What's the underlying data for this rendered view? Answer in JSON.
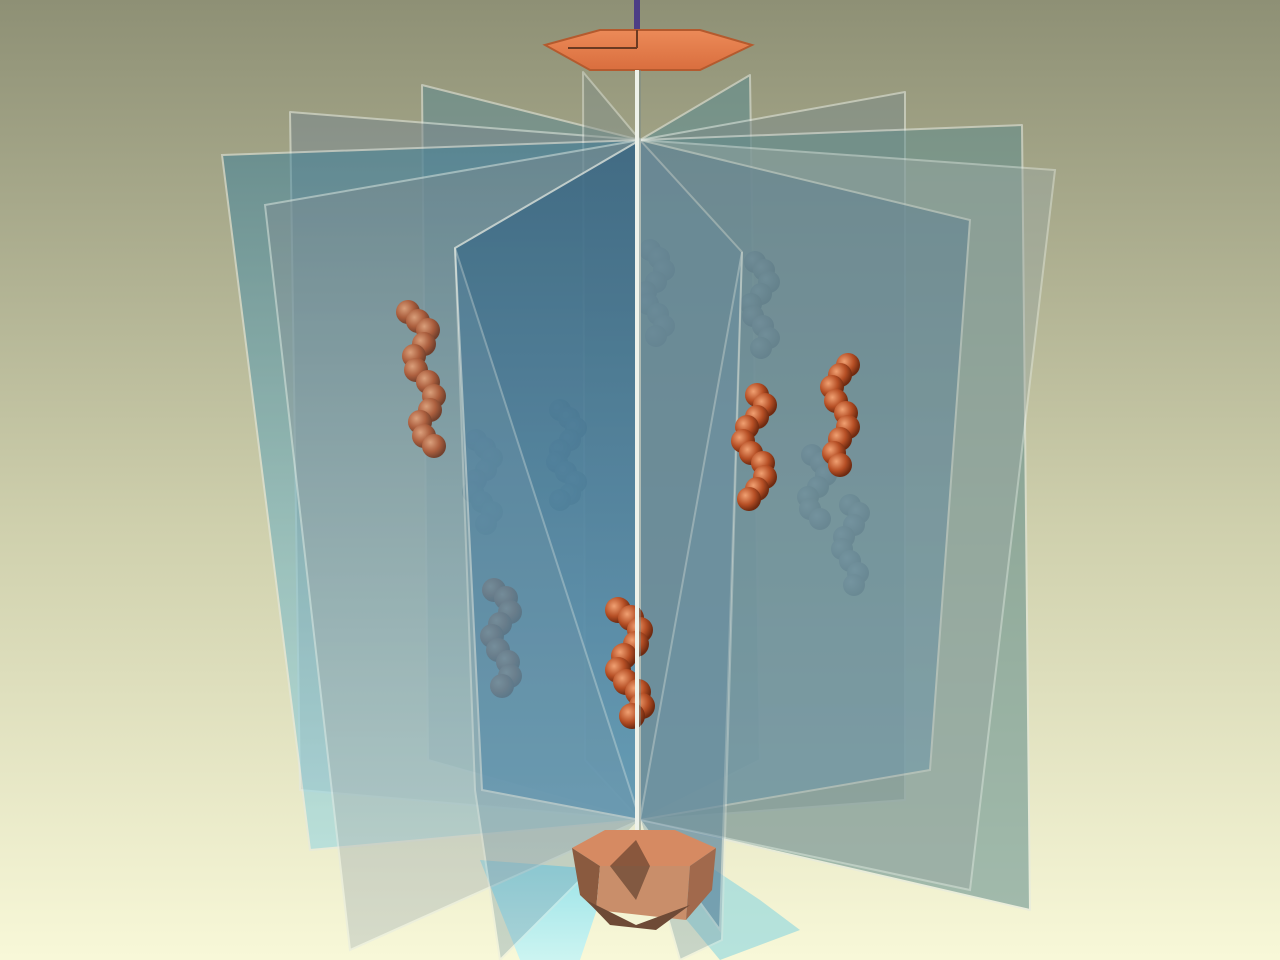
{
  "scene": {
    "colors": {
      "background_top": "#8f9176",
      "background_bottom": "#f7f7d6",
      "plate_front": "#3f7ea2",
      "plate_back": "#9aa9a8",
      "plate_edge": "#e7eee8",
      "hexagon_top": "#e17c4c",
      "hexagon_bottom": "#b07a5c",
      "helix": "#b9542c",
      "axis_rod": "#4c3d86",
      "floor_glow": "#aeeaf0"
    }
  }
}
